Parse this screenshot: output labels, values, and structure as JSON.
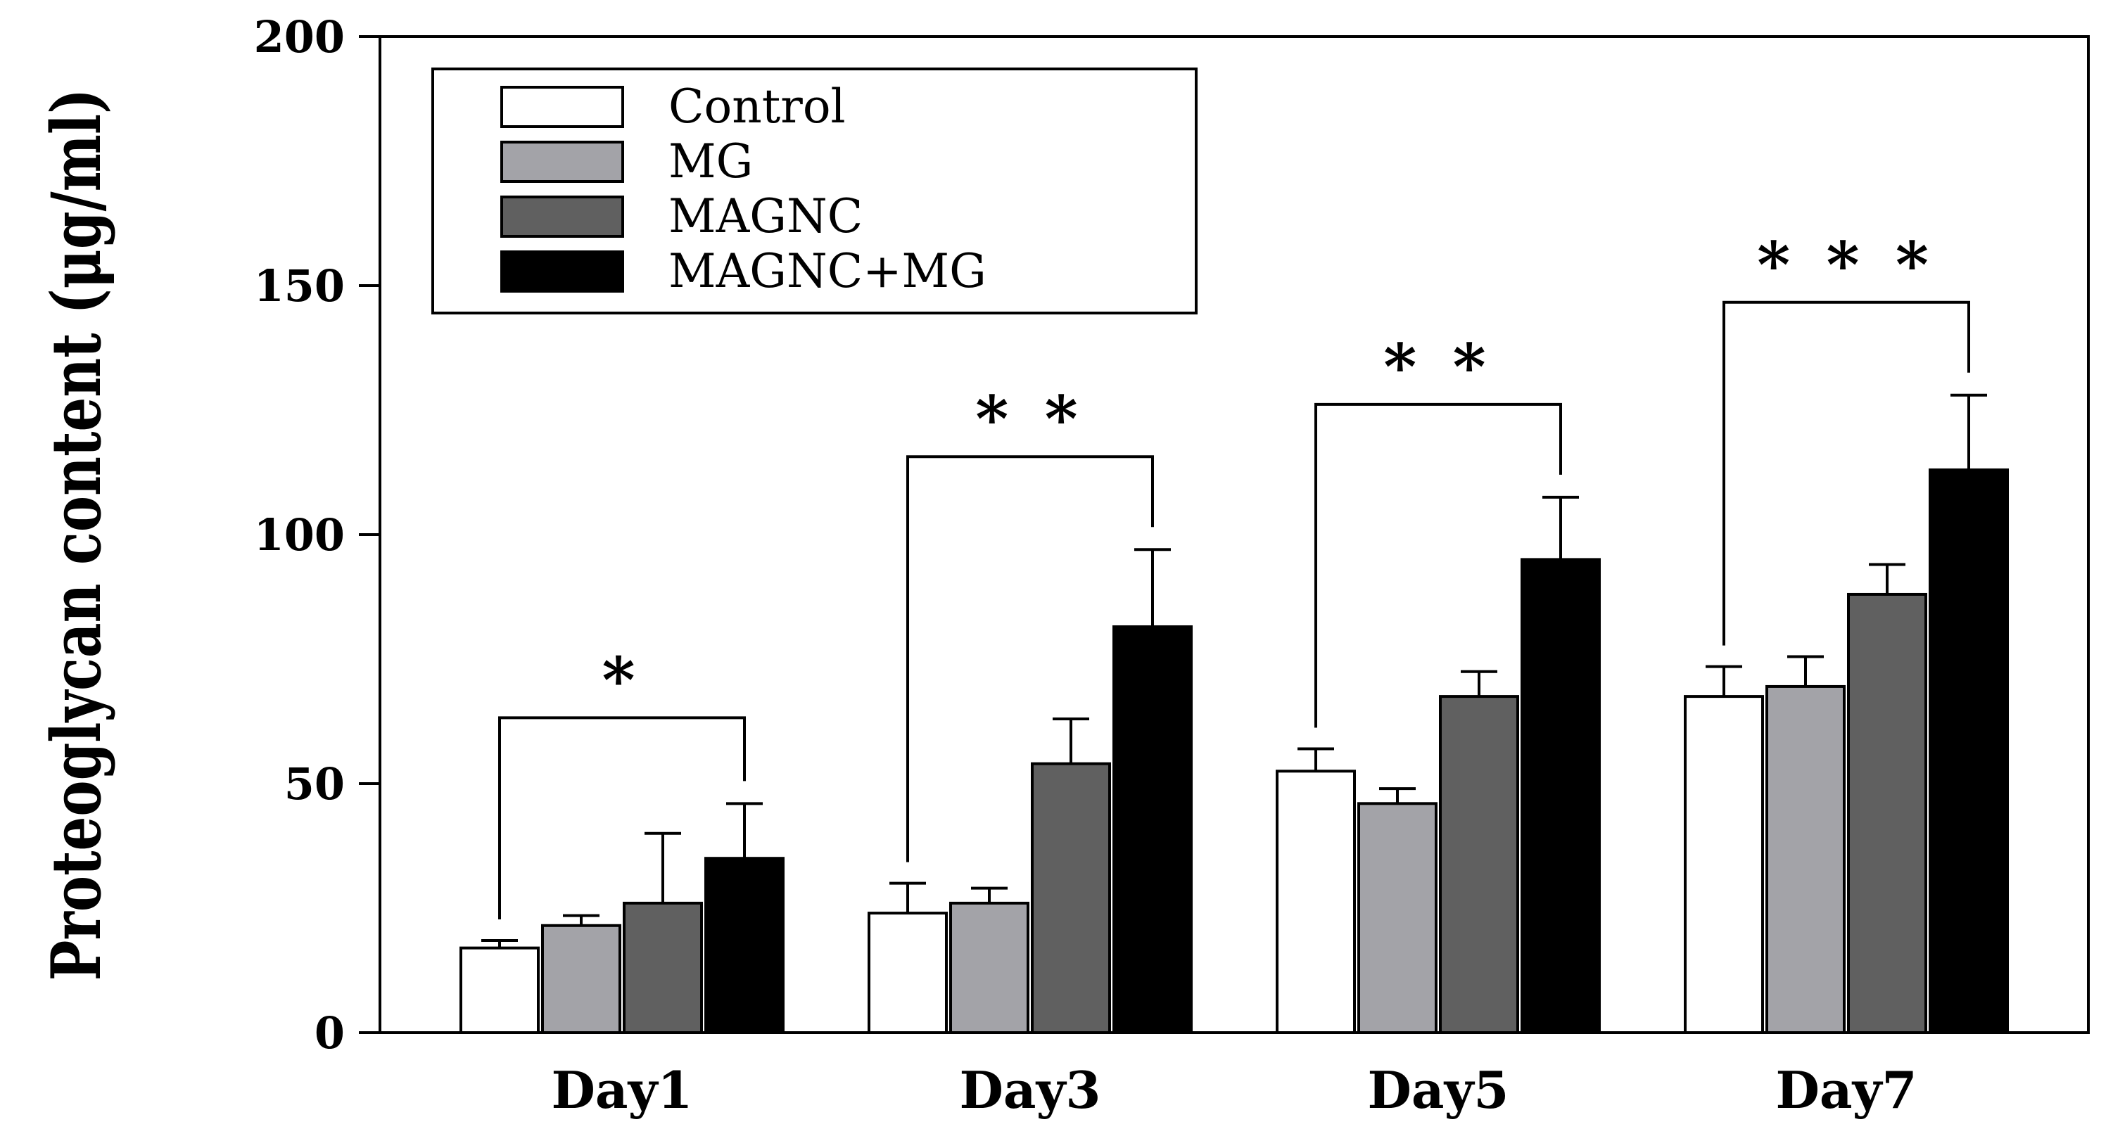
{
  "chart_data": {
    "type": "bar",
    "title": "",
    "xlabel": "",
    "ylabel": "Proteoglycan content (μg/ml)",
    "ylim": [
      0,
      200
    ],
    "yticks": [
      "0",
      "50",
      "100",
      "150",
      "200"
    ],
    "categories": [
      "Day1",
      "Day3",
      "Day5",
      "Day7"
    ],
    "legend_position": "top-left",
    "series": [
      {
        "name": "Control",
        "color": "#ffffff",
        "values": [
          17,
          24,
          52.5,
          67.5
        ],
        "errors": [
          1.5,
          6,
          4.5,
          6
        ]
      },
      {
        "name": "MG",
        "color": "#a3a3a8",
        "values": [
          21.5,
          26,
          46,
          69.5
        ],
        "errors": [
          2,
          3,
          3,
          6
        ]
      },
      {
        "name": "MAGNC",
        "color": "#606060",
        "values": [
          26,
          54,
          67.5,
          88
        ],
        "errors": [
          14,
          9,
          5,
          6
        ]
      },
      {
        "name": "MAGNC+MG",
        "color": "#000000",
        "values": [
          35,
          81.5,
          95,
          113
        ],
        "errors": [
          11,
          15.5,
          12.5,
          15
        ]
      }
    ],
    "significance": [
      {
        "category": "Day1",
        "label": "*"
      },
      {
        "category": "Day3",
        "label": "* *"
      },
      {
        "category": "Day5",
        "label": "* *"
      },
      {
        "category": "Day7",
        "label": "* * *"
      }
    ]
  }
}
